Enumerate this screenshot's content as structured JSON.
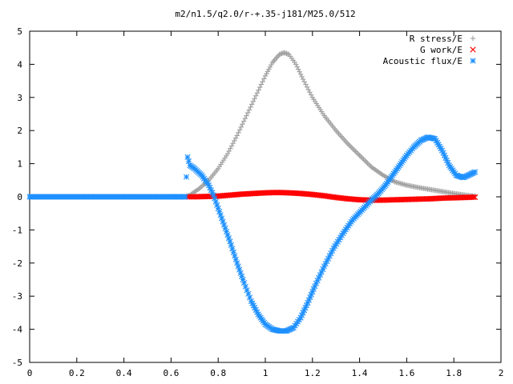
{
  "chart_data": {
    "type": "scatter",
    "title": "m2/n1.5/q2.0/r-+.35-j181/M25.0/512",
    "xlabel": "",
    "ylabel": "",
    "xlim": [
      0,
      2
    ],
    "ylim": [
      -5,
      5
    ],
    "x_ticks": [
      0,
      0.2,
      0.4,
      0.6,
      0.8,
      1,
      1.2,
      1.4,
      1.6,
      1.8,
      2
    ],
    "x_tick_labels": [
      "0",
      "0.2",
      "0.4",
      "0.6",
      "0.8",
      "1",
      "1.2",
      "1.4",
      "1.6",
      "1.8",
      "2"
    ],
    "y_ticks": [
      -5,
      -4,
      -3,
      -2,
      -1,
      0,
      1,
      2,
      3,
      4,
      5
    ],
    "y_tick_labels": [
      "-5",
      "-4",
      "-3",
      "-2",
      "-1",
      "0",
      "1",
      "2",
      "3",
      "4",
      "5"
    ],
    "grid": false,
    "legend_position": "top-right",
    "series": [
      {
        "name": "R stress/E",
        "marker": "plus",
        "color": "#a0a0a0",
        "points": [
          [
            0.0,
            0
          ],
          [
            0.1,
            0
          ],
          [
            0.2,
            0
          ],
          [
            0.3,
            0
          ],
          [
            0.4,
            0
          ],
          [
            0.5,
            0
          ],
          [
            0.6,
            0
          ],
          [
            0.66,
            0
          ],
          [
            0.68,
            0.05
          ],
          [
            0.72,
            0.25
          ],
          [
            0.76,
            0.5
          ],
          [
            0.8,
            0.85
          ],
          [
            0.84,
            1.3
          ],
          [
            0.88,
            1.85
          ],
          [
            0.92,
            2.45
          ],
          [
            0.96,
            3.05
          ],
          [
            1.0,
            3.65
          ],
          [
            1.03,
            4.05
          ],
          [
            1.06,
            4.3
          ],
          [
            1.08,
            4.35
          ],
          [
            1.1,
            4.3
          ],
          [
            1.13,
            4.0
          ],
          [
            1.16,
            3.55
          ],
          [
            1.2,
            3.0
          ],
          [
            1.25,
            2.45
          ],
          [
            1.3,
            2.0
          ],
          [
            1.35,
            1.6
          ],
          [
            1.4,
            1.25
          ],
          [
            1.45,
            0.9
          ],
          [
            1.5,
            0.65
          ],
          [
            1.55,
            0.45
          ],
          [
            1.6,
            0.35
          ],
          [
            1.65,
            0.28
          ],
          [
            1.7,
            0.22
          ],
          [
            1.75,
            0.16
          ],
          [
            1.8,
            0.1
          ],
          [
            1.85,
            0.05
          ],
          [
            1.89,
            0.02
          ]
        ]
      },
      {
        "name": "G work/E",
        "marker": "cross",
        "color": "#ff0000",
        "points": [
          [
            0.67,
            0.0
          ],
          [
            0.7,
            0.0
          ],
          [
            0.75,
            0.01
          ],
          [
            0.8,
            0.02
          ],
          [
            0.85,
            0.05
          ],
          [
            0.9,
            0.08
          ],
          [
            0.95,
            0.1
          ],
          [
            1.0,
            0.12
          ],
          [
            1.05,
            0.13
          ],
          [
            1.1,
            0.12
          ],
          [
            1.15,
            0.1
          ],
          [
            1.2,
            0.07
          ],
          [
            1.25,
            0.03
          ],
          [
            1.3,
            -0.02
          ],
          [
            1.35,
            -0.06
          ],
          [
            1.4,
            -0.09
          ],
          [
            1.45,
            -0.1
          ],
          [
            1.5,
            -0.1
          ],
          [
            1.55,
            -0.09
          ],
          [
            1.6,
            -0.08
          ],
          [
            1.65,
            -0.07
          ],
          [
            1.7,
            -0.06
          ],
          [
            1.75,
            -0.04
          ],
          [
            1.8,
            -0.03
          ],
          [
            1.85,
            -0.02
          ],
          [
            1.89,
            -0.01
          ]
        ]
      },
      {
        "name": "Acoustic flux/E",
        "marker": "star",
        "color": "#1e90ff",
        "points": [
          [
            0.0,
            0
          ],
          [
            0.1,
            0
          ],
          [
            0.2,
            0
          ],
          [
            0.3,
            0
          ],
          [
            0.4,
            0
          ],
          [
            0.5,
            0
          ],
          [
            0.6,
            0
          ],
          [
            0.66,
            0
          ],
          [
            0.67,
            1.2
          ],
          [
            0.68,
            0.95
          ],
          [
            0.7,
            0.85
          ],
          [
            0.73,
            0.65
          ],
          [
            0.76,
            0.35
          ],
          [
            0.78,
            0.05
          ],
          [
            0.8,
            -0.35
          ],
          [
            0.82,
            -0.75
          ],
          [
            0.85,
            -1.35
          ],
          [
            0.88,
            -2.0
          ],
          [
            0.91,
            -2.6
          ],
          [
            0.94,
            -3.15
          ],
          [
            0.97,
            -3.55
          ],
          [
            1.0,
            -3.85
          ],
          [
            1.03,
            -4.0
          ],
          [
            1.06,
            -4.05
          ],
          [
            1.09,
            -4.05
          ],
          [
            1.12,
            -3.95
          ],
          [
            1.15,
            -3.65
          ],
          [
            1.18,
            -3.2
          ],
          [
            1.21,
            -2.7
          ],
          [
            1.25,
            -2.1
          ],
          [
            1.29,
            -1.55
          ],
          [
            1.33,
            -1.1
          ],
          [
            1.37,
            -0.7
          ],
          [
            1.41,
            -0.4
          ],
          [
            1.45,
            -0.1
          ],
          [
            1.48,
            0.1
          ],
          [
            1.51,
            0.35
          ],
          [
            1.54,
            0.65
          ],
          [
            1.57,
            0.95
          ],
          [
            1.6,
            1.25
          ],
          [
            1.63,
            1.5
          ],
          [
            1.66,
            1.7
          ],
          [
            1.69,
            1.8
          ],
          [
            1.72,
            1.75
          ],
          [
            1.75,
            1.4
          ],
          [
            1.78,
            0.95
          ],
          [
            1.81,
            0.65
          ],
          [
            1.84,
            0.58
          ],
          [
            1.87,
            0.68
          ],
          [
            1.89,
            0.75
          ]
        ]
      }
    ]
  }
}
